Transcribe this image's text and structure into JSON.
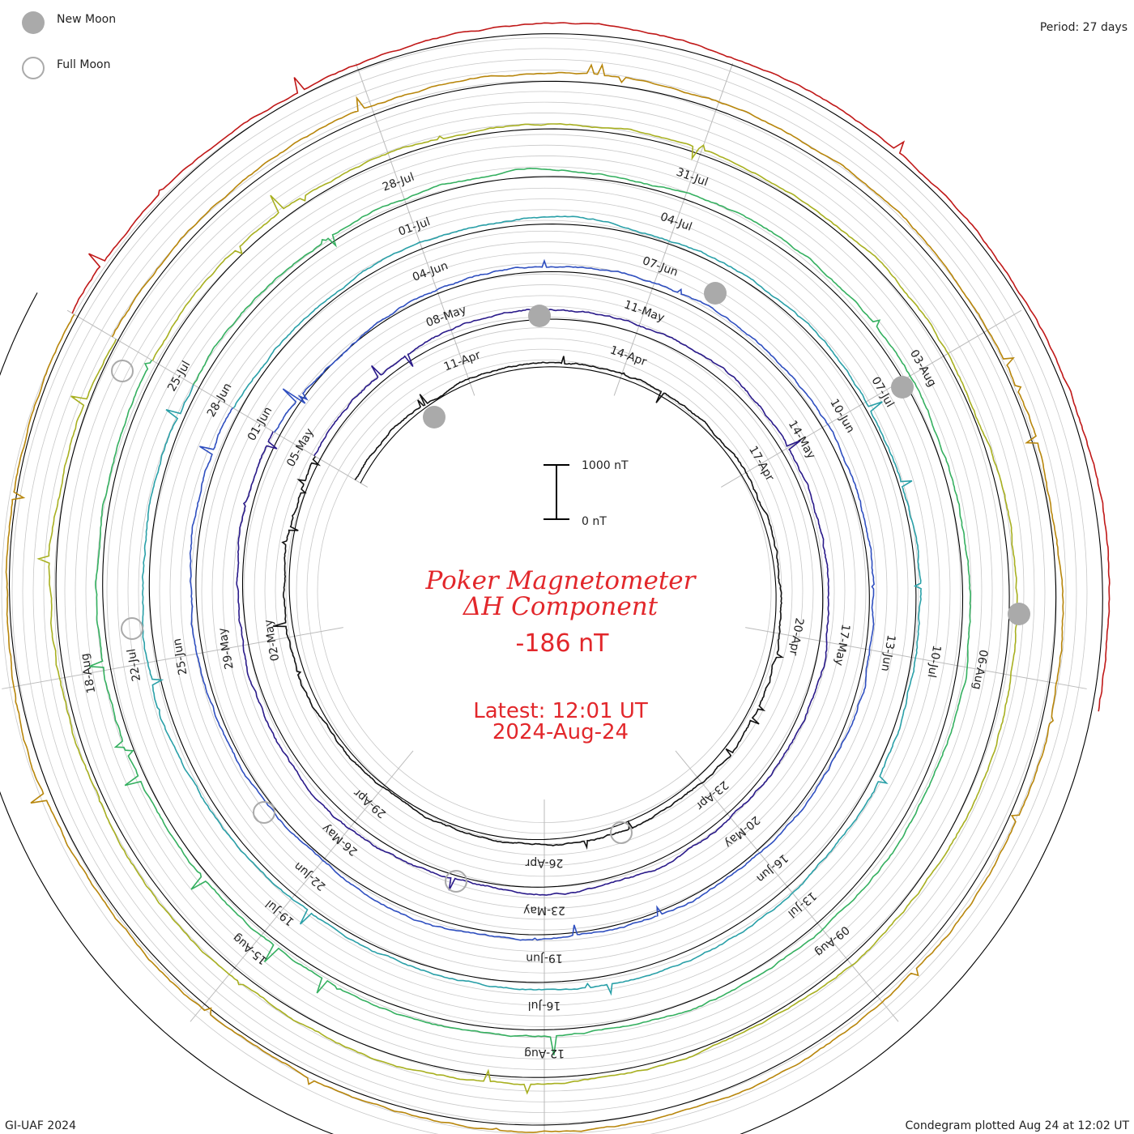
{
  "legend": {
    "new_moon": "New Moon",
    "full_moon": "Full Moon"
  },
  "period": "Period: 27 days",
  "footer_left": "GI-UAF 2024",
  "footer_right": "Condegram plotted Aug 24 at 12:02 UT",
  "scale_bar": {
    "top_label": "1000 nT",
    "bottom_label": "0 nT"
  },
  "center": {
    "title_line1": "Poker Magnetometer",
    "title_line2": "ΔH Component",
    "value": "-186 nT",
    "latest_line1": "Latest: 12:01 UT",
    "latest_line2": "2024-Aug-24"
  },
  "colors": {
    "new_moon": "#aaaaaa",
    "full_moon_stroke": "#aaaaaa",
    "ring": "#000000",
    "grid": "#c8c8c8",
    "text_red": "#e2272b",
    "spoke": "#bbbbbb"
  },
  "chart_data": {
    "type": "line",
    "title": "Poker Magnetometer ΔH Component",
    "period_days": 27,
    "units": "nT",
    "latest_value": -186,
    "scale_nT": [
      0,
      1000
    ],
    "rotations": [
      {
        "start": "2024-Apr-08",
        "color": "#111111",
        "date_labels": [
          "11-Apr",
          "14-Apr",
          "17-Apr",
          "20-Apr",
          "23-Apr",
          "26-Apr",
          "29-Apr",
          "02-May",
          "05-May"
        ]
      },
      {
        "start": "2024-May-05",
        "color": "#2a1a8a",
        "date_labels": [
          "08-May",
          "11-May",
          "14-May",
          "17-May",
          "20-May",
          "23-May",
          "26-May",
          "29-May",
          "01-Jun"
        ]
      },
      {
        "start": "2024-Jun-01",
        "color": "#2f4fc0",
        "date_labels": [
          "04-Jun",
          "07-Jun",
          "10-Jun",
          "13-Jun",
          "16-Jun",
          "19-Jun",
          "22-Jun",
          "25-Jun",
          "28-Jun"
        ]
      },
      {
        "start": "2024-Jun-28",
        "color": "#2aa0a8",
        "date_labels": [
          "01-Jul",
          "04-Jul",
          "07-Jul",
          "10-Jul",
          "13-Jul",
          "16-Jul",
          "19-Jul",
          "22-Jul",
          "25-Jul"
        ]
      },
      {
        "start": "2024-Jul-25",
        "color": "#35b060",
        "date_labels": [
          "28-Jul",
          "31-Jul",
          "03-Aug",
          "06-Aug",
          "09-Aug",
          "12-Aug",
          "15-Aug",
          "18-Aug"
        ]
      },
      {
        "start": "2024-Jul-25",
        "color": "#a8b020",
        "date_labels": []
      },
      {
        "start": "2024-Jul-25",
        "color": "#b8860b",
        "date_labels": []
      },
      {
        "start": "2024-Aug-21",
        "color": "#c01818",
        "date_labels": []
      }
    ],
    "new_moons": [
      "2024-Apr-08",
      "2024-May-08",
      "2024-Jun-06",
      "2024-Jul-05",
      "2024-Aug-04"
    ],
    "full_moons": [
      "2024-Apr-23",
      "2024-May-23",
      "2024-Jun-22",
      "2024-Jul-21",
      "2024-Aug-19"
    ]
  }
}
